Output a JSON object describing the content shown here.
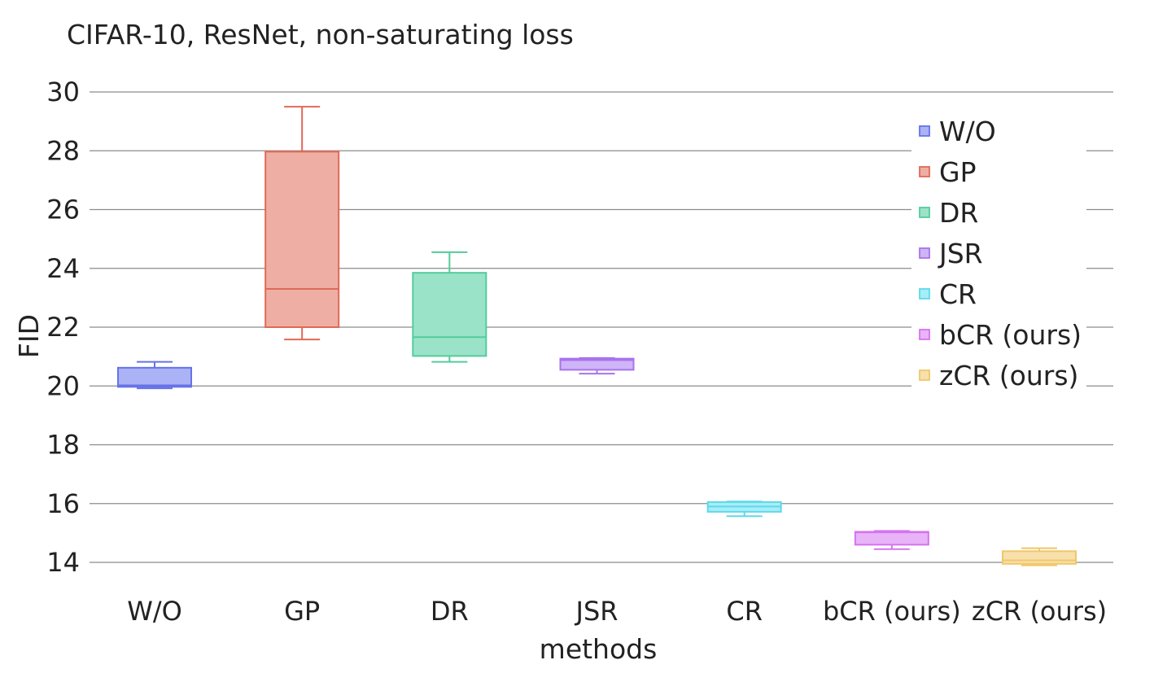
{
  "chart_data": {
    "type": "box",
    "title": "CIFAR-10, ResNet, non-saturating loss",
    "xlabel": "methods",
    "ylabel": "FID",
    "ylim": [
      13.3,
      30.5
    ],
    "yticks": [
      14,
      16,
      18,
      20,
      22,
      24,
      26,
      28,
      30
    ],
    "grid": true,
    "legend_position": "top-right",
    "categories": [
      "W/O",
      "GP",
      "DR",
      "JSR",
      "CR",
      "bCR (ours)",
      "zCR (ours)"
    ],
    "series": [
      {
        "name": "W/O",
        "min": 19.92,
        "q1": 19.97,
        "median": 20.02,
        "q3": 20.62,
        "max": 20.82,
        "color": "#6673e8",
        "fill": "#abb2f5"
      },
      {
        "name": "GP",
        "min": 21.58,
        "q1": 22.0,
        "median": 23.3,
        "q3": 27.97,
        "max": 29.5,
        "color": "#e06a56",
        "fill": "#eeaea3"
      },
      {
        "name": "DR",
        "min": 20.82,
        "q1": 21.02,
        "median": 21.66,
        "q3": 23.85,
        "max": 24.55,
        "color": "#53cc9c",
        "fill": "#9be3c8"
      },
      {
        "name": "JSR",
        "min": 20.42,
        "q1": 20.55,
        "median": 20.88,
        "q3": 20.93,
        "max": 20.95,
        "color": "#a873ec",
        "fill": "#cfb4f7"
      },
      {
        "name": "CR",
        "min": 15.57,
        "q1": 15.72,
        "median": 15.9,
        "q3": 16.05,
        "max": 16.07,
        "color": "#5fd8ea",
        "fill": "#a6eef7"
      },
      {
        "name": "bCR (ours)",
        "min": 14.45,
        "q1": 14.6,
        "median": 15.02,
        "q3": 15.04,
        "max": 15.07,
        "color": "#d673ef",
        "fill": "#e9b3f7"
      },
      {
        "name": "zCR (ours)",
        "min": 13.9,
        "q1": 13.95,
        "median": 14.07,
        "q3": 14.38,
        "max": 14.48,
        "color": "#f0c769",
        "fill": "#f7e0ab"
      }
    ]
  }
}
